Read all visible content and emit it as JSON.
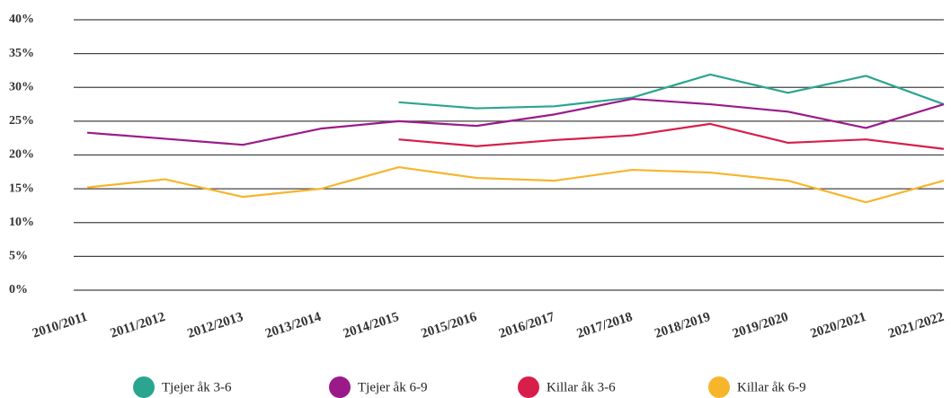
{
  "chart_data": {
    "type": "line",
    "categories": [
      "2010/2011",
      "2011/2012",
      "2012/2013",
      "2013/2014",
      "2014/2015",
      "2015/2016",
      "2016/2017",
      "2017/2018",
      "2018/2019",
      "2019/2020",
      "2020/2021",
      "2021/2022"
    ],
    "series": [
      {
        "name": "Tjejer åk 3-6",
        "color": "#2ba58f",
        "values": [
          null,
          null,
          null,
          null,
          27.8,
          26.9,
          27.2,
          28.5,
          31.9,
          29.2,
          31.7,
          27.5
        ]
      },
      {
        "name": "Tjejer åk 6-9",
        "color": "#9b1a8a",
        "values": [
          23.3,
          22.4,
          21.5,
          23.9,
          25.0,
          24.3,
          26.0,
          28.3,
          27.5,
          26.4,
          24.0,
          27.5
        ]
      },
      {
        "name": "Killar åk 3-6",
        "color": "#d81e4a",
        "values": [
          null,
          null,
          null,
          null,
          22.3,
          21.3,
          22.2,
          22.9,
          24.6,
          21.8,
          22.3,
          20.9
        ]
      },
      {
        "name": "Killar åk 6-9",
        "color": "#f7b52c",
        "values": [
          15.2,
          16.4,
          13.8,
          15.0,
          18.2,
          16.6,
          16.2,
          17.8,
          17.4,
          16.2,
          13.0,
          16.2
        ]
      }
    ],
    "ylim": [
      0,
      40
    ],
    "yticks": [
      {
        "value": 0,
        "label": "0%"
      },
      {
        "value": 5,
        "label": "5%"
      },
      {
        "value": 10,
        "label": "10%"
      },
      {
        "value": 15,
        "label": "15%"
      },
      {
        "value": 20,
        "label": "20%"
      },
      {
        "value": 25,
        "label": "25%"
      },
      {
        "value": 30,
        "label": "30%"
      },
      {
        "value": 35,
        "label": "35%"
      },
      {
        "value": 40,
        "label": "40%"
      }
    ],
    "grid": true,
    "legend": "bottom"
  }
}
